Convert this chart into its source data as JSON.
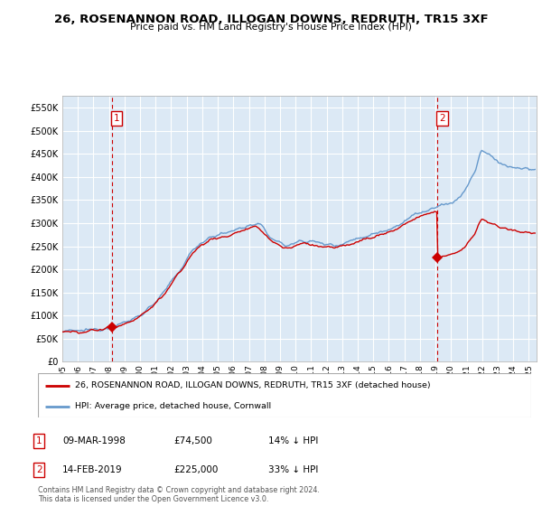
{
  "title": "26, ROSENANNON ROAD, ILLOGAN DOWNS, REDRUTH, TR15 3XF",
  "subtitle": "Price paid vs. HM Land Registry's House Price Index (HPI)",
  "ylim": [
    0,
    575000
  ],
  "yticks": [
    0,
    50000,
    100000,
    150000,
    200000,
    250000,
    300000,
    350000,
    400000,
    450000,
    500000,
    550000
  ],
  "ytick_labels": [
    "£0",
    "£50K",
    "£100K",
    "£150K",
    "£200K",
    "£250K",
    "£300K",
    "£350K",
    "£400K",
    "£450K",
    "£500K",
    "£550K"
  ],
  "xlim_start": 1995.0,
  "xlim_end": 2025.5,
  "xtick_years": [
    1995,
    1996,
    1997,
    1998,
    1999,
    2000,
    2001,
    2002,
    2003,
    2004,
    2005,
    2006,
    2007,
    2008,
    2009,
    2010,
    2011,
    2012,
    2013,
    2014,
    2015,
    2016,
    2017,
    2018,
    2019,
    2020,
    2021,
    2022,
    2023,
    2024,
    2025
  ],
  "bg_color": "#dce9f5",
  "grid_color": "#ffffff",
  "red_line_color": "#cc0000",
  "blue_line_color": "#6699cc",
  "vline_color": "#cc0000",
  "sale1_x": 1998.19,
  "sale1_y": 74500,
  "sale2_x": 2019.12,
  "sale2_y": 225000,
  "legend_red": "26, ROSENANNON ROAD, ILLOGAN DOWNS, REDRUTH, TR15 3XF (detached house)",
  "legend_blue": "HPI: Average price, detached house, Cornwall",
  "table_row1": [
    "1",
    "09-MAR-1998",
    "£74,500",
    "14% ↓ HPI"
  ],
  "table_row2": [
    "2",
    "14-FEB-2019",
    "£225,000",
    "33% ↓ HPI"
  ],
  "footer": "Contains HM Land Registry data © Crown copyright and database right 2024.\nThis data is licensed under the Open Government Licence v3.0.",
  "hpi_base_1995": 65000,
  "hpi_at_sale1": 86500,
  "hpi_at_sale2": 337000
}
